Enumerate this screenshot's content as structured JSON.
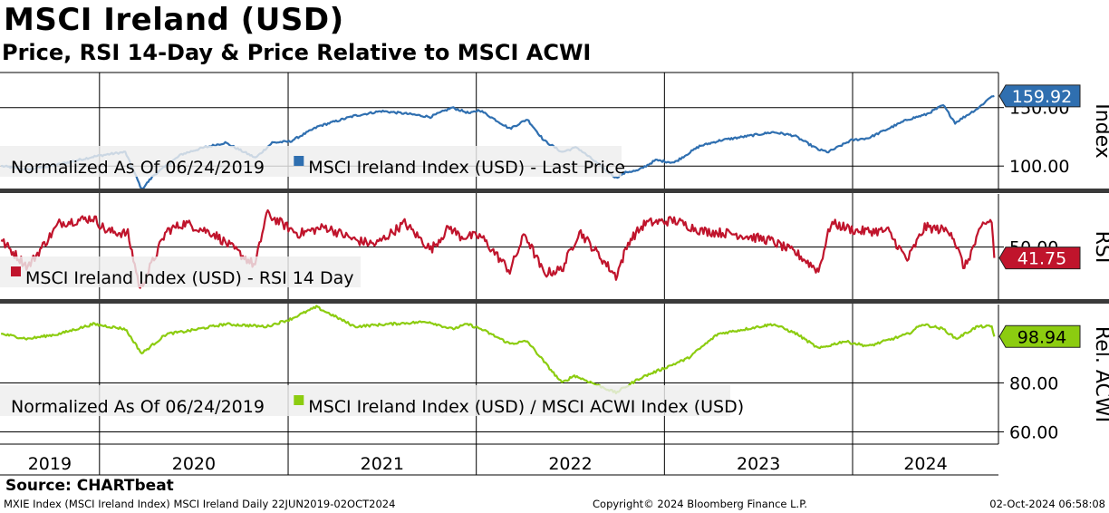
{
  "title": "MSCI Ireland (USD)",
  "subtitle": "Price, RSI 14-Day & Price Relative to MSCI ACWI",
  "source": "Source: CHARTbeat",
  "footer": {
    "left": "MXIE Index (MSCI Ireland Index) MSCI Ireland  Daily 22JUN2019-02OCT2024",
    "center": "Copyright© 2024 Bloomberg Finance L.P.",
    "right": "02-Oct-2024 06:58:08"
  },
  "colors": {
    "price": "#2f6fb0",
    "price_highlight": "#8fb4d9",
    "rsi": "#c0142c",
    "relative": "#8ccc10",
    "separator": "#3a3a3a"
  },
  "chart_data": [
    {
      "type": "line",
      "panel": "price",
      "axis_title": "Index",
      "legend": [
        "Normalized As Of 06/24/2019",
        "MSCI Ireland Index (USD) - Last Price"
      ],
      "ylim": [
        80,
        180
      ],
      "y_ticks": [
        100,
        150
      ],
      "y_tick_labels": [
        "100.00",
        "150.00"
      ],
      "last_value_label": "159.92",
      "series": [
        {
          "name": "MSCI Ireland Index (USD) - Last Price",
          "x": [
            "2019-06-24",
            "2019-08-15",
            "2019-10-10",
            "2019-12-20",
            "2020-01-17",
            "2020-02-20",
            "2020-03-23",
            "2020-04-15",
            "2020-06-08",
            "2020-07-15",
            "2020-09-01",
            "2020-10-30",
            "2020-12-01",
            "2021-01-05",
            "2021-03-01",
            "2021-05-10",
            "2021-07-01",
            "2021-08-15",
            "2021-10-04",
            "2021-11-15",
            "2021-12-20",
            "2022-01-07",
            "2022-03-07",
            "2022-04-10",
            "2022-05-12",
            "2022-06-16",
            "2022-07-15",
            "2022-09-29",
            "2022-10-20",
            "2022-11-10",
            "2022-12-15",
            "2023-01-20",
            "2023-03-10",
            "2023-04-20",
            "2023-07-31",
            "2023-09-10",
            "2023-10-27",
            "2023-11-15",
            "2023-12-29",
            "2024-02-01",
            "2024-04-18",
            "2024-05-22",
            "2024-06-25",
            "2024-07-18",
            "2024-09-02",
            "2024-09-27",
            "2024-10-02"
          ],
          "values": [
            100,
            97,
            101,
            108,
            110,
            112,
            80,
            92,
            110,
            115,
            120,
            107,
            120,
            121,
            134,
            143,
            147,
            145,
            142,
            150,
            145,
            148,
            132,
            140,
            122,
            112,
            116,
            90,
            95,
            96,
            105,
            103,
            117,
            122,
            129,
            126,
            114,
            112,
            122,
            124,
            140,
            144,
            152,
            137,
            150,
            160,
            159.92
          ]
        }
      ]
    },
    {
      "type": "line",
      "panel": "rsi",
      "axis_title": "RSI",
      "legend": [
        "MSCI Ireland Index (USD) - RSI 14 Day"
      ],
      "ylim": [
        10,
        90
      ],
      "y_ticks": [
        50
      ],
      "y_tick_labels": [
        "50.00"
      ],
      "last_value_label": "41.75",
      "series": [
        {
          "name": "MSCI Ireland Index (USD) - RSI 14 Day",
          "x": [
            "2019-06-24",
            "2019-08-15",
            "2019-10-15",
            "2019-12-20",
            "2020-01-15",
            "2020-02-25",
            "2020-03-20",
            "2020-05-10",
            "2020-06-15",
            "2020-08-10",
            "2020-10-29",
            "2020-11-20",
            "2021-01-20",
            "2021-03-15",
            "2021-05-12",
            "2021-06-20",
            "2021-08-15",
            "2021-10-05",
            "2021-11-10",
            "2021-12-01",
            "2022-01-10",
            "2022-03-07",
            "2022-04-05",
            "2022-05-12",
            "2022-06-16",
            "2022-07-20",
            "2022-09-29",
            "2022-10-25",
            "2022-11-25",
            "2023-01-20",
            "2023-03-15",
            "2023-05-15",
            "2023-07-25",
            "2023-09-15",
            "2023-10-27",
            "2023-11-20",
            "2024-01-10",
            "2024-03-10",
            "2024-04-16",
            "2024-05-20",
            "2024-07-10",
            "2024-08-05",
            "2024-09-10",
            "2024-09-27",
            "2024-10-02"
          ],
          "values": [
            55,
            35,
            68,
            72,
            62,
            60,
            18,
            62,
            68,
            60,
            36,
            75,
            60,
            65,
            55,
            52,
            68,
            48,
            65,
            58,
            58,
            32,
            60,
            30,
            33,
            62,
            28,
            55,
            68,
            70,
            62,
            60,
            55,
            45,
            32,
            68,
            62,
            62,
            40,
            65,
            62,
            34,
            67,
            70,
            41.75
          ]
        }
      ]
    },
    {
      "type": "line",
      "panel": "relative",
      "axis_title": "Rel. ACWI",
      "legend": [
        "Normalized As Of 06/24/2019",
        "MSCI Ireland Index (USD) / MSCI ACWI Index (USD)"
      ],
      "ylim": [
        55,
        112
      ],
      "y_ticks": [
        60,
        80
      ],
      "y_tick_labels": [
        "60.00",
        "80.00"
      ],
      "last_value_label": "98.94",
      "series": [
        {
          "name": "MSCI Ireland Index (USD) / MSCI ACWI Index (USD)",
          "x": [
            "2019-06-24",
            "2019-08-15",
            "2019-10-15",
            "2019-12-20",
            "2020-02-20",
            "2020-03-23",
            "2020-05-10",
            "2020-06-15",
            "2020-09-01",
            "2020-11-20",
            "2021-01-05",
            "2021-02-25",
            "2021-05-10",
            "2021-07-15",
            "2021-09-30",
            "2021-11-15",
            "2021-12-15",
            "2022-01-10",
            "2022-03-07",
            "2022-04-10",
            "2022-05-15",
            "2022-06-16",
            "2022-07-10",
            "2022-09-29",
            "2022-11-15",
            "2022-12-31",
            "2023-02-15",
            "2023-04-15",
            "2023-07-31",
            "2023-09-15",
            "2023-10-27",
            "2023-12-15",
            "2024-02-01",
            "2024-04-18",
            "2024-05-15",
            "2024-06-25",
            "2024-07-20",
            "2024-08-30",
            "2024-09-27",
            "2024-10-02"
          ],
          "values": [
            100,
            98,
            100,
            104,
            102,
            92,
            100,
            101,
            104,
            103,
            106,
            111,
            103,
            104,
            105,
            102,
            104,
            102,
            96,
            97,
            88,
            80,
            83,
            76,
            82,
            86,
            90,
            100,
            104,
            100,
            94,
            97,
            95,
            100,
            104,
            102,
            98,
            103,
            103,
            98.94
          ]
        }
      ]
    }
  ],
  "x_axis": {
    "year_labels": [
      "2019",
      "2020",
      "2021",
      "2022",
      "2023",
      "2024"
    ]
  }
}
